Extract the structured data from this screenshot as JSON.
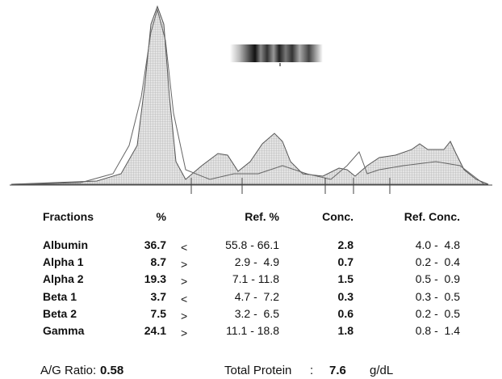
{
  "table": {
    "headers": [
      "Fractions",
      "%",
      "Ref. %",
      "Conc.",
      "Ref. Conc."
    ],
    "rows": [
      {
        "name": "Albumin",
        "percent": 36.7,
        "flag": "<",
        "ref_percent": "55.8 - 66.1",
        "conc": 2.8,
        "ref_conc": "4.0 -  4.8"
      },
      {
        "name": "Alpha 1",
        "percent": 8.7,
        "flag": ">",
        "ref_percent": "2.9 -  4.9",
        "conc": 0.7,
        "ref_conc": "0.2 -  0.4"
      },
      {
        "name": "Alpha 2",
        "percent": 19.3,
        "flag": ">",
        "ref_percent": "7.1 - 11.8",
        "conc": 1.5,
        "ref_conc": "0.5 -  0.9"
      },
      {
        "name": "Beta 1",
        "percent": 3.7,
        "flag": "<",
        "ref_percent": "4.7 -  7.2",
        "conc": 0.3,
        "ref_conc": "0.3 -  0.5"
      },
      {
        "name": "Beta 2",
        "percent": 7.5,
        "flag": ">",
        "ref_percent": "3.2 -  6.5",
        "conc": 0.6,
        "ref_conc": "0.2 -  0.5"
      },
      {
        "name": "Gamma",
        "percent": 24.1,
        "flag": ">",
        "ref_percent": "11.1 - 18.8",
        "conc": 1.8,
        "ref_conc": "0.8 -  1.4"
      }
    ]
  },
  "footer": {
    "ag_label": "A/G Ratio:",
    "ag_value": 0.58,
    "tp_label": "Total Protein",
    "tp_sep": ":",
    "tp_value": 7.6,
    "tp_unit": "g/dL"
  }
}
